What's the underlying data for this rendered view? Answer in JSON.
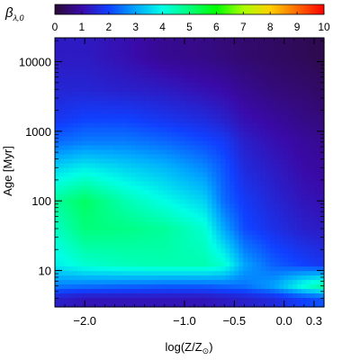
{
  "colorbar": {
    "label": "β",
    "label_sub": "λ,0",
    "ticks": [
      "0",
      "1",
      "2",
      "3",
      "4",
      "5",
      "6",
      "7",
      "8",
      "9",
      "10"
    ],
    "range": [
      0,
      10
    ],
    "stops": [
      {
        "v": 0,
        "c": "#2a0a35"
      },
      {
        "v": 1,
        "c": "#3a0aa8"
      },
      {
        "v": 2,
        "c": "#1040ff"
      },
      {
        "v": 3,
        "c": "#00a6ff"
      },
      {
        "v": 4,
        "c": "#00ffe6"
      },
      {
        "v": 5,
        "c": "#00ff7a"
      },
      {
        "v": 6,
        "c": "#00ff00"
      },
      {
        "v": 7,
        "c": "#a8ff00"
      },
      {
        "v": 8,
        "c": "#ffd000"
      },
      {
        "v": 9,
        "c": "#ff6a00"
      },
      {
        "v": 10,
        "c": "#ff0000"
      }
    ]
  },
  "chart_data": {
    "type": "heatmap",
    "title": "",
    "xlabel": "log(Z/Z",
    "xlabel_sun": "⊙",
    "xlabel_close": ")",
    "ylabel": "Age [Myr]",
    "x_ticks": [
      {
        "v": -2.0,
        "label": "−2.0"
      },
      {
        "v": -1.0,
        "label": "−1.0"
      },
      {
        "v": -0.5,
        "label": "−0.5"
      },
      {
        "v": 0.0,
        "label": "0.0"
      },
      {
        "v": 0.3,
        "label": "0.3"
      }
    ],
    "y_ticks": [
      {
        "v": 10,
        "label": "10"
      },
      {
        "v": 100,
        "label": "100"
      },
      {
        "v": 1000,
        "label": "1000"
      },
      {
        "v": 10000,
        "label": "10000"
      }
    ],
    "y_scale": "log",
    "xlim": [
      -2.3,
      0.4
    ],
    "ylim": [
      3,
      22000
    ],
    "grid": false,
    "value_field": [
      {
        "x": -2.3,
        "rows": [
          [
            4,
            1.4
          ],
          [
            6,
            2.6
          ],
          [
            12,
            3.8
          ],
          [
            40,
            4.3
          ],
          [
            100,
            4.7
          ],
          [
            300,
            3.5
          ],
          [
            700,
            2.4
          ],
          [
            1500,
            1.8
          ],
          [
            4000,
            1.5
          ],
          [
            12000,
            1.3
          ]
        ]
      },
      {
        "x": -2.0,
        "rows": [
          [
            4,
            1.2
          ],
          [
            6,
            2.5
          ],
          [
            12,
            4.2
          ],
          [
            40,
            5.0
          ],
          [
            100,
            5.2
          ],
          [
            300,
            3.8
          ],
          [
            700,
            2.6
          ],
          [
            1500,
            2.0
          ],
          [
            4000,
            1.5
          ],
          [
            12000,
            1.3
          ]
        ]
      },
      {
        "x": -1.6,
        "rows": [
          [
            4,
            1.2
          ],
          [
            6,
            2.4
          ],
          [
            12,
            4.4
          ],
          [
            40,
            4.9
          ],
          [
            100,
            4.5
          ],
          [
            300,
            3.5
          ],
          [
            700,
            2.6
          ],
          [
            1500,
            2.0
          ],
          [
            4000,
            1.4
          ],
          [
            12000,
            1.1
          ]
        ]
      },
      {
        "x": -1.2,
        "rows": [
          [
            4,
            1.2
          ],
          [
            6,
            2.3
          ],
          [
            12,
            4.5
          ],
          [
            40,
            4.7
          ],
          [
            100,
            4.0
          ],
          [
            300,
            3.2
          ],
          [
            700,
            2.4
          ],
          [
            1500,
            1.8
          ],
          [
            4000,
            1.3
          ],
          [
            12000,
            0.8
          ]
        ]
      },
      {
        "x": -0.8,
        "rows": [
          [
            4,
            1.2
          ],
          [
            6,
            2.3
          ],
          [
            12,
            4.5
          ],
          [
            40,
            4.2
          ],
          [
            100,
            3.5
          ],
          [
            300,
            2.7
          ],
          [
            700,
            2.1
          ],
          [
            1500,
            1.6
          ],
          [
            4000,
            1.1
          ],
          [
            12000,
            0.7
          ]
        ]
      },
      {
        "x": -0.6,
        "rows": [
          [
            4,
            1.3
          ],
          [
            6,
            2.4
          ],
          [
            12,
            4.2
          ],
          [
            40,
            3.0
          ],
          [
            100,
            2.4
          ],
          [
            300,
            2.2
          ],
          [
            700,
            1.9
          ],
          [
            1500,
            1.4
          ],
          [
            4000,
            1.0
          ],
          [
            12000,
            0.6
          ]
        ]
      },
      {
        "x": -0.4,
        "rows": [
          [
            4,
            1.4
          ],
          [
            6,
            2.5
          ],
          [
            12,
            3.0
          ],
          [
            40,
            2.1
          ],
          [
            100,
            1.9
          ],
          [
            300,
            1.6
          ],
          [
            700,
            1.4
          ],
          [
            1500,
            1.1
          ],
          [
            4000,
            0.8
          ],
          [
            12000,
            0.5
          ]
        ]
      },
      {
        "x": -0.1,
        "rows": [
          [
            4,
            1.6
          ],
          [
            6,
            3.0
          ],
          [
            12,
            2.3
          ],
          [
            40,
            1.7
          ],
          [
            100,
            1.5
          ],
          [
            300,
            1.3
          ],
          [
            700,
            1.1
          ],
          [
            1500,
            0.9
          ],
          [
            4000,
            0.6
          ],
          [
            12000,
            0.4
          ]
        ]
      },
      {
        "x": 0.2,
        "rows": [
          [
            4,
            2.0
          ],
          [
            6,
            4.2
          ],
          [
            12,
            2.0
          ],
          [
            40,
            1.4
          ],
          [
            100,
            1.2
          ],
          [
            300,
            1.0
          ],
          [
            700,
            0.9
          ],
          [
            1500,
            0.7
          ],
          [
            4000,
            0.5
          ],
          [
            12000,
            0.3
          ]
        ]
      },
      {
        "x": 0.4,
        "rows": [
          [
            4,
            2.2
          ],
          [
            6,
            4.8
          ],
          [
            12,
            1.8
          ],
          [
            40,
            1.3
          ],
          [
            100,
            1.1
          ],
          [
            300,
            0.9
          ],
          [
            700,
            0.8
          ],
          [
            1500,
            0.6
          ],
          [
            4000,
            0.4
          ],
          [
            12000,
            0.2
          ]
        ]
      }
    ]
  }
}
